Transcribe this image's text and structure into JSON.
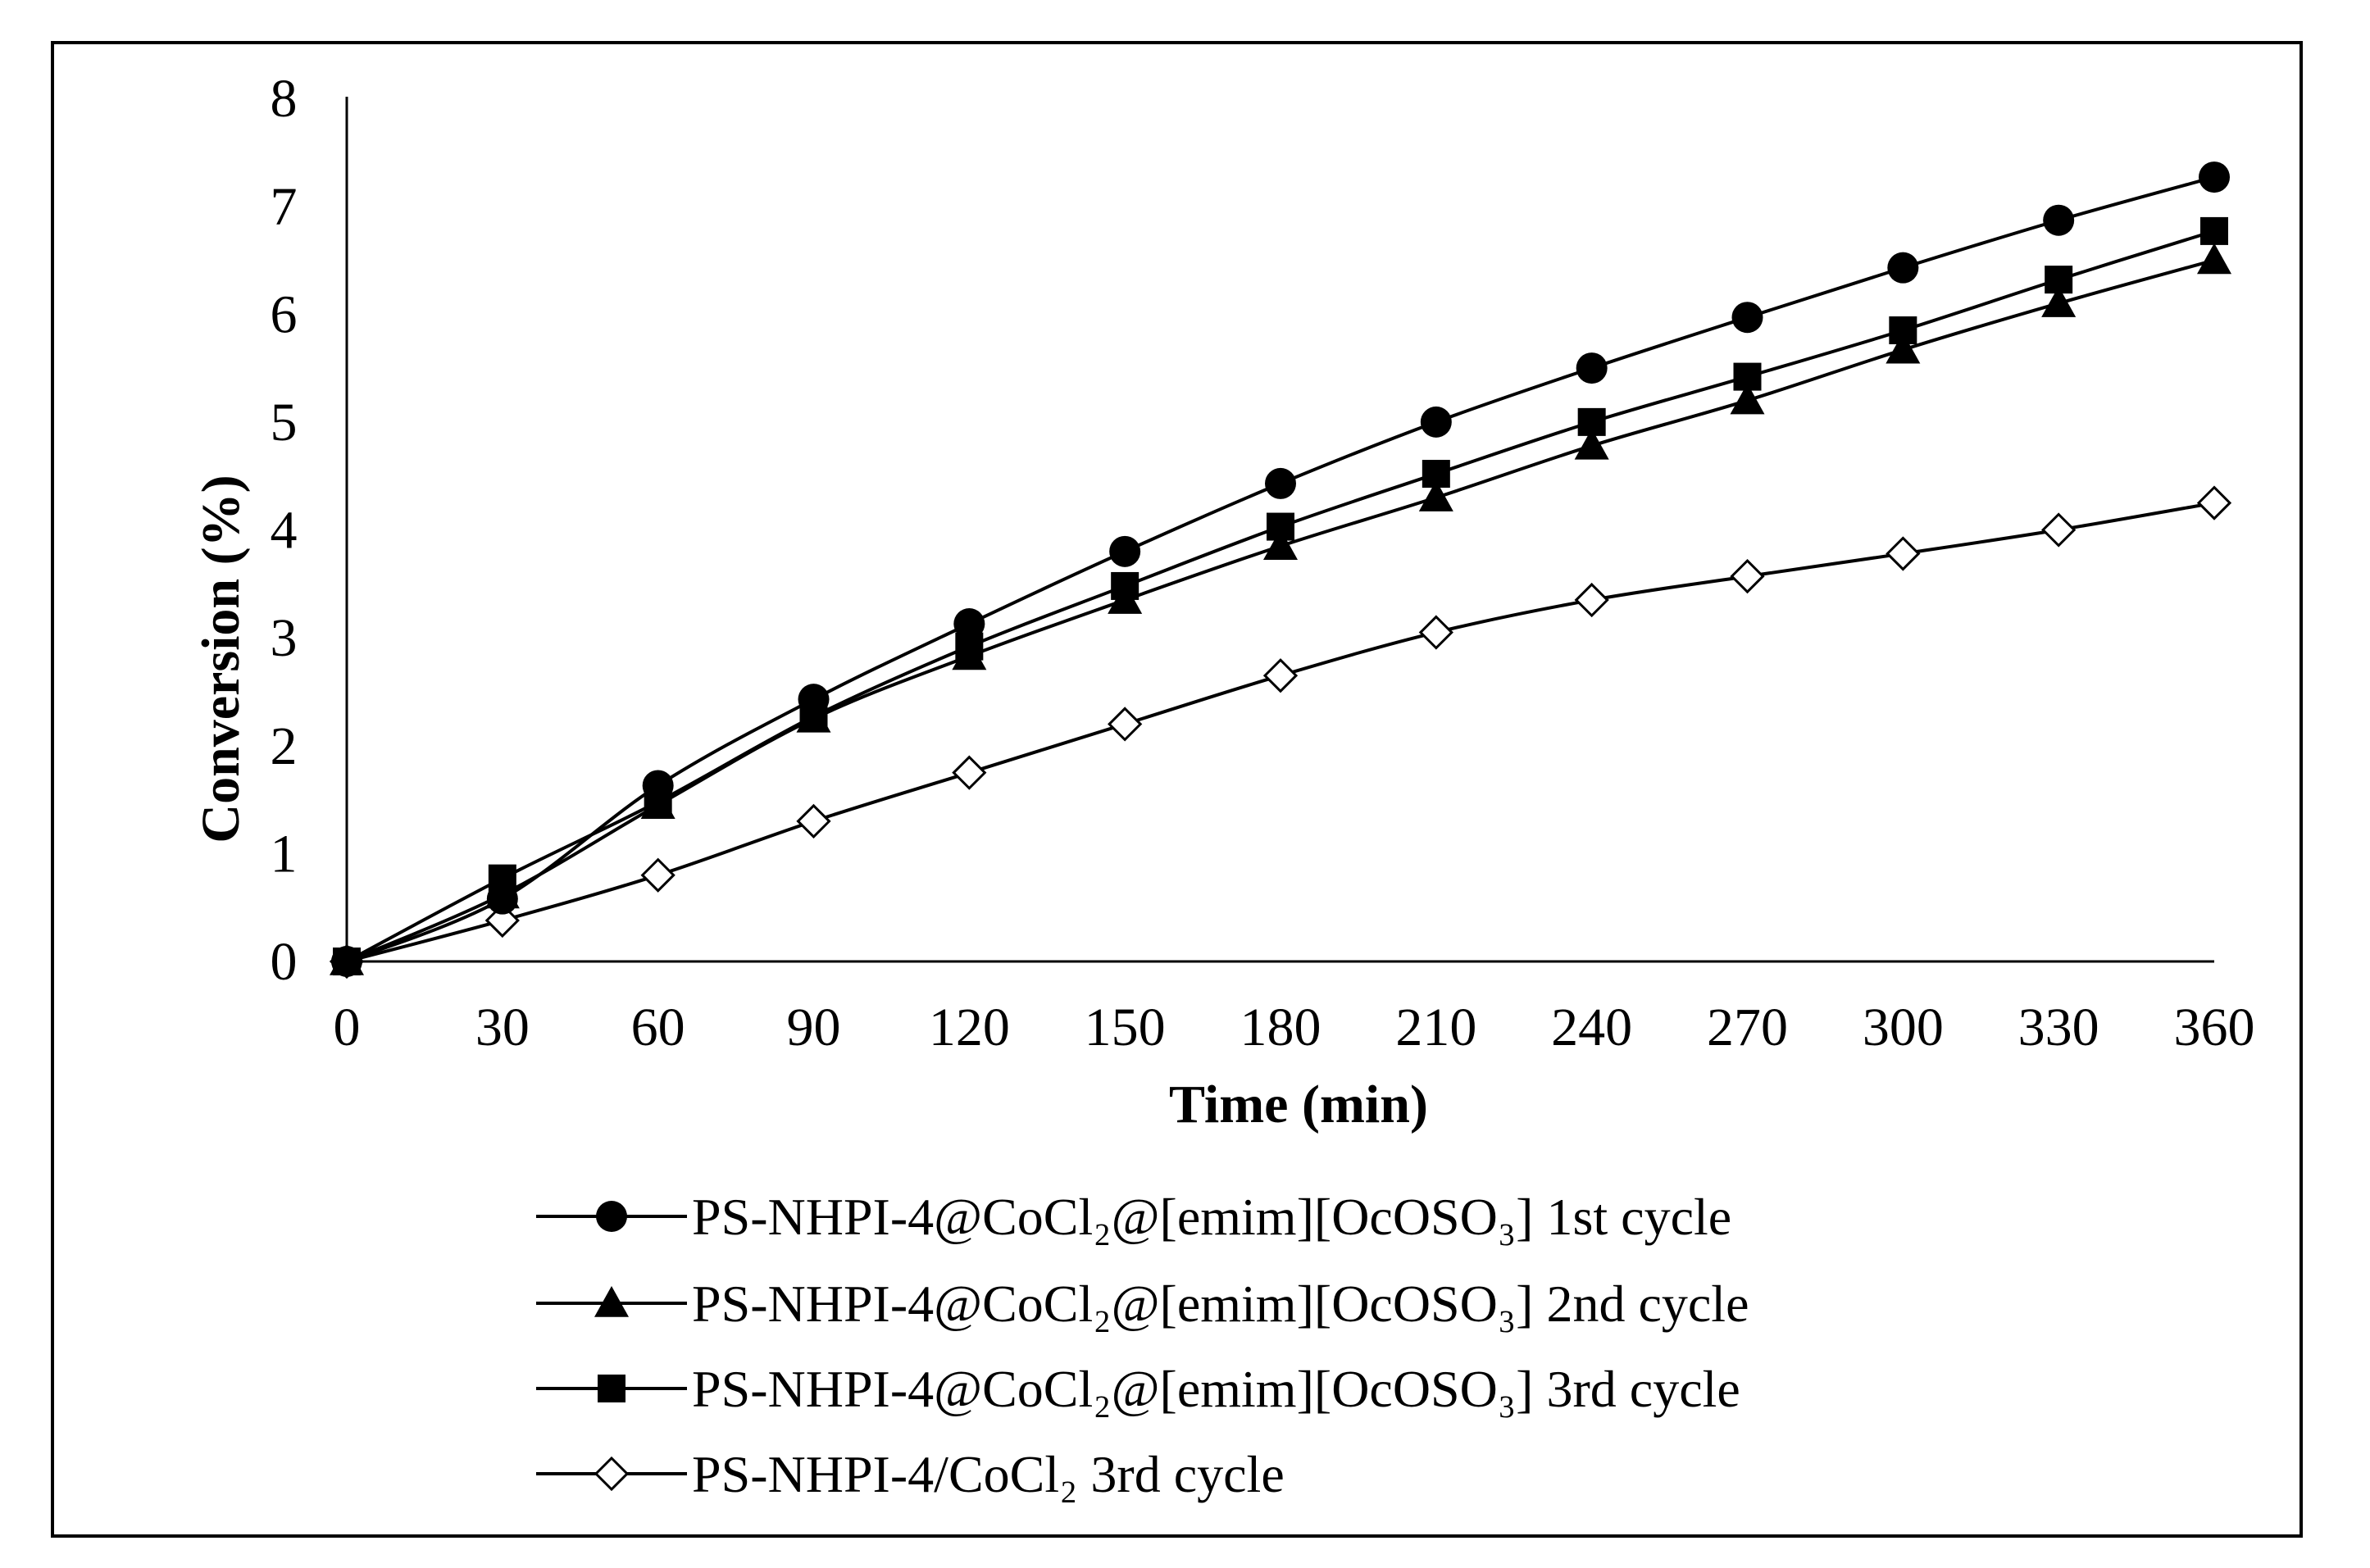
{
  "chart_data": {
    "type": "line",
    "title": "",
    "xlabel": "Time (min)",
    "ylabel": "Conversion (%)",
    "xlim": [
      0,
      360
    ],
    "ylim": [
      0,
      8
    ],
    "x": [
      0,
      30,
      60,
      90,
      120,
      150,
      180,
      210,
      240,
      270,
      300,
      330,
      360
    ],
    "x_tick_labels": [
      "0",
      "30",
      "60",
      "90",
      "120",
      "150",
      "180",
      "210",
      "240",
      "270",
      "300",
      "330",
      "360"
    ],
    "y_ticks": [
      0,
      1,
      2,
      3,
      4,
      5,
      6,
      7,
      8
    ],
    "y_tick_labels": [
      "0",
      "1",
      "2",
      "3",
      "4",
      "5",
      "6",
      "7",
      "8"
    ],
    "grid": false,
    "legend_position": "bottom",
    "series": [
      {
        "name": "PS-NHPI-4@CoCl₂@[emim][OcOSO₃] 1st cycle",
        "marker": "circle",
        "values": [
          0,
          0.58,
          1.63,
          2.43,
          3.13,
          3.8,
          4.43,
          5.0,
          5.5,
          5.97,
          6.43,
          6.87,
          7.27
        ]
      },
      {
        "name": "PS-NHPI-4@CoCl₂@[emim][OcOSO₃] 2nd cycle",
        "marker": "triangle",
        "values": [
          0,
          0.62,
          1.45,
          2.25,
          2.83,
          3.35,
          3.85,
          4.3,
          4.78,
          5.2,
          5.67,
          6.1,
          6.5
        ]
      },
      {
        "name": "PS-NHPI-4@CoCl₂@[emim][OcOSO₃] 3rd cycle",
        "marker": "square",
        "values": [
          0,
          0.77,
          1.48,
          2.27,
          2.92,
          3.48,
          4.03,
          4.52,
          5.0,
          5.42,
          5.85,
          6.32,
          6.77
        ]
      },
      {
        "name": "PS-NHPI-4/CoCl₂ 3rd cycle",
        "marker": "diamond-open",
        "values": [
          0,
          0.38,
          0.8,
          1.3,
          1.75,
          2.2,
          2.65,
          3.05,
          3.35,
          3.57,
          3.78,
          4.0,
          4.25
        ]
      }
    ]
  }
}
